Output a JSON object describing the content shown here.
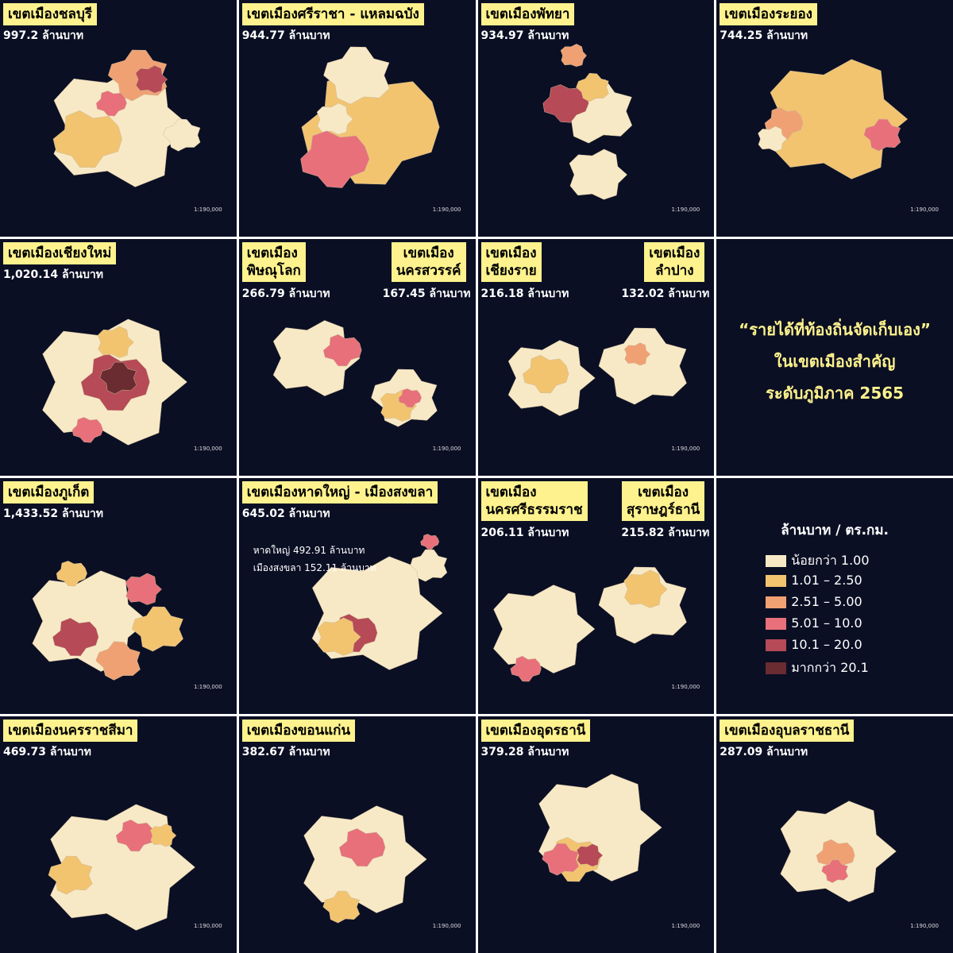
{
  "panels": [
    {
      "titles": [
        {
          "lines": [
            "เขตเมืองชลบุรี"
          ],
          "amount": "997.2 ล้านบาท"
        }
      ],
      "scale": "1:190,000"
    },
    {
      "titles": [
        {
          "lines": [
            "เขตเมืองศรีราชา - แหลมฉบัง"
          ],
          "amount": "944.77 ล้านบาท"
        }
      ],
      "scale": "1:190,000"
    },
    {
      "titles": [
        {
          "lines": [
            "เขตเมืองพัทยา"
          ],
          "amount": "934.97 ล้านบาท"
        }
      ],
      "scale": "1:190,000"
    },
    {
      "titles": [
        {
          "lines": [
            "เขตเมืองระยอง"
          ],
          "amount": "744.25 ล้านบาท"
        }
      ],
      "scale": "1:190,000"
    },
    {
      "titles": [
        {
          "lines": [
            "เขตเมืองเชียงใหม่"
          ],
          "amount": "1,020.14 ล้านบาท"
        }
      ],
      "scale": "1:190,000"
    },
    {
      "titles": [
        {
          "lines": [
            "เขตเมือง",
            "พิษณุโลก"
          ],
          "amount": "266.79 ล้านบาท"
        },
        {
          "lines": [
            "เขตเมือง",
            "นครสวรรค์"
          ],
          "amount": "167.45 ล้านบาท"
        }
      ],
      "scale": "1:190,000"
    },
    {
      "titles": [
        {
          "lines": [
            "เขตเมือง",
            "เชียงราย"
          ],
          "amount": "216.18 ล้านบาท"
        },
        {
          "lines": [
            "เขตเมือง",
            "ลำปาง"
          ],
          "amount": "132.02 ล้านบาท"
        }
      ],
      "scale": "1:190,000"
    },
    {
      "heading": [
        "“รายได้ที่ท้องถิ่นจัดเก็บเอง”",
        "ในเขตเมืองสำคัญ",
        "ระดับภูมิภาค 2565"
      ]
    },
    {
      "titles": [
        {
          "lines": [
            "เขตเมืองภูเก็ต"
          ],
          "amount": "1,433.52 ล้านบาท"
        }
      ],
      "scale": "1:190,000"
    },
    {
      "titles": [
        {
          "lines": [
            "เขตเมืองหาดใหญ่ - เมืองสงขลา"
          ],
          "amount": "645.02 ล้านบาท"
        }
      ],
      "notes": [
        "หาดใหญ่ 492.91 ล้านบาท",
        "เมืองสงขลา 152.11 ล้านบาท"
      ]
    },
    {
      "titles": [
        {
          "lines": [
            "เขตเมือง",
            "นครศรีธรรมราช"
          ],
          "amount": "206.11 ล้านบาท"
        },
        {
          "lines": [
            "เขตเมือง",
            "สุราษฎร์ธานี"
          ],
          "amount": "215.82 ล้านบาท"
        }
      ],
      "scale": "1:190,000"
    },
    {
      "legend": {
        "title": "ล้านบาท / ตร.กม.",
        "entries": [
          {
            "label": "น้อยกว่า 1.00",
            "color": "#f8e9c6"
          },
          {
            "label": "1.01 – 2.50",
            "color": "#f2c470"
          },
          {
            "label": "2.51 – 5.00",
            "color": "#f0a173"
          },
          {
            "label": "5.01 – 10.0",
            "color": "#e8707a"
          },
          {
            "label": "10.1 – 20.0",
            "color": "#b64a56"
          },
          {
            "label": "มากกว่า 20.1",
            "color": "#6a2b31"
          }
        ]
      }
    },
    {
      "titles": [
        {
          "lines": [
            "เขตเมืองนครราชสีมา"
          ],
          "amount": "469.73 ล้านบาท"
        }
      ],
      "scale": "1:190,000"
    },
    {
      "titles": [
        {
          "lines": [
            "เขตเมืองขอนแก่น"
          ],
          "amount": "382.67 ล้านบาท"
        }
      ],
      "scale": "1:190,000"
    },
    {
      "titles": [
        {
          "lines": [
            "เขตเมืองอุดรธานี"
          ],
          "amount": "379.28 ล้านบาท"
        }
      ],
      "scale": "1:190,000"
    },
    {
      "titles": [
        {
          "lines": [
            "เขตเมืองอุบลราชธานี"
          ],
          "amount": "287.09 ล้านบาท"
        }
      ],
      "scale": "1:190,000"
    }
  ]
}
